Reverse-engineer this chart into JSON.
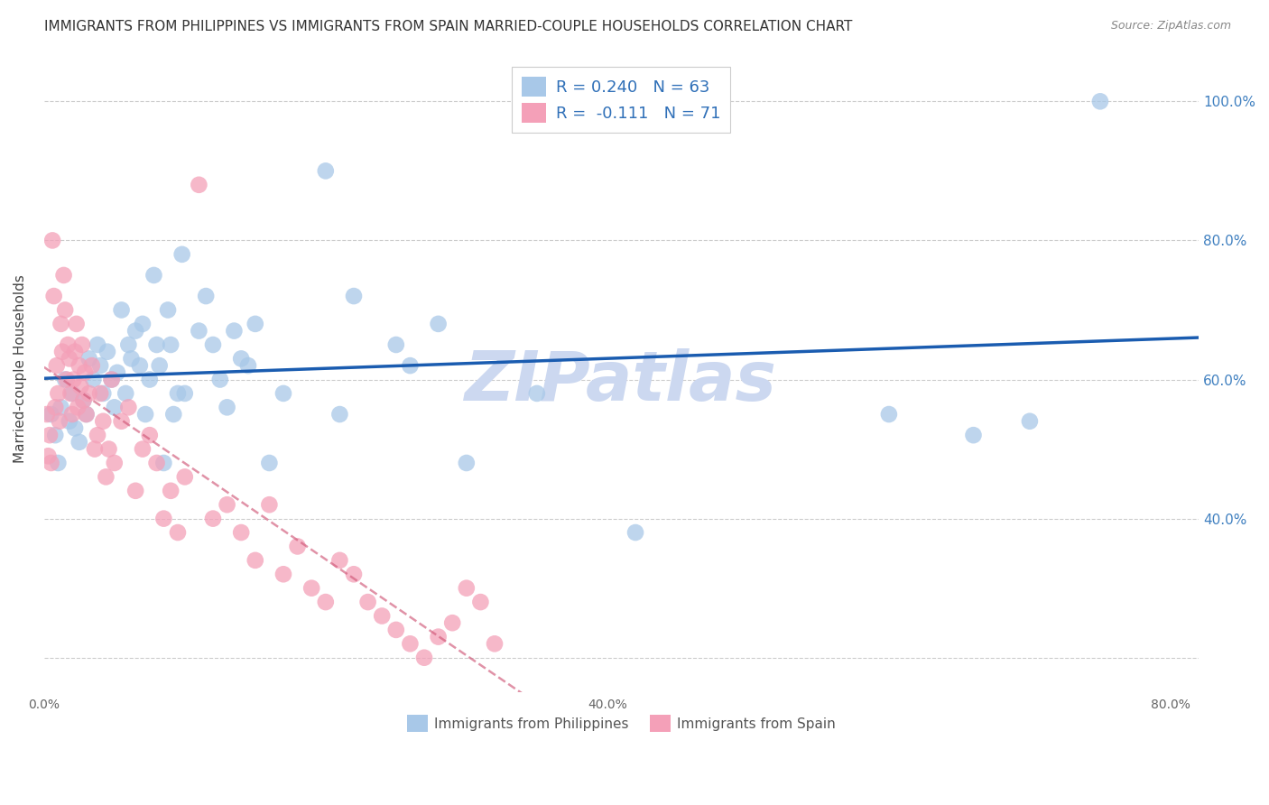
{
  "title": "IMMIGRANTS FROM PHILIPPINES VS IMMIGRANTS FROM SPAIN MARRIED-COUPLE HOUSEHOLDS CORRELATION CHART",
  "source": "Source: ZipAtlas.com",
  "ylabel": "Married-couple Households",
  "xlim": [
    0.0,
    0.82
  ],
  "ylim": [
    0.15,
    1.08
  ],
  "xticks": [
    0.0,
    0.2,
    0.4,
    0.6,
    0.8
  ],
  "xtick_labels": [
    "0.0%",
    "",
    "40.0%",
    "",
    "80.0%"
  ],
  "yticks": [
    0.2,
    0.4,
    0.6,
    0.8,
    1.0
  ],
  "right_ytick_labels": [
    "",
    "40.0%",
    "60.0%",
    "80.0%",
    "100.0%"
  ],
  "philippines_color": "#a8c8e8",
  "spain_color": "#f4a0b8",
  "philippines_line_color": "#1a5cb0",
  "spain_line_color": "#d05878",
  "r_philippines": 0.24,
  "n_philippines": 63,
  "r_spain": -0.111,
  "n_spain": 71,
  "watermark": "ZIPatlas",
  "watermark_color": "#ccd8f0",
  "background_color": "#ffffff",
  "grid_color": "#cccccc",
  "philippines_x": [
    0.005,
    0.008,
    0.01,
    0.012,
    0.015,
    0.018,
    0.02,
    0.022,
    0.025,
    0.028,
    0.03,
    0.032,
    0.035,
    0.038,
    0.04,
    0.042,
    0.045,
    0.048,
    0.05,
    0.052,
    0.055,
    0.058,
    0.06,
    0.062,
    0.065,
    0.068,
    0.07,
    0.072,
    0.075,
    0.078,
    0.08,
    0.082,
    0.085,
    0.088,
    0.09,
    0.092,
    0.095,
    0.098,
    0.1,
    0.11,
    0.115,
    0.12,
    0.125,
    0.13,
    0.135,
    0.14,
    0.145,
    0.15,
    0.16,
    0.17,
    0.2,
    0.21,
    0.22,
    0.25,
    0.26,
    0.28,
    0.3,
    0.35,
    0.42,
    0.6,
    0.66,
    0.7,
    0.75
  ],
  "philippines_y": [
    0.55,
    0.52,
    0.48,
    0.56,
    0.6,
    0.54,
    0.58,
    0.53,
    0.51,
    0.57,
    0.55,
    0.63,
    0.6,
    0.65,
    0.62,
    0.58,
    0.64,
    0.6,
    0.56,
    0.61,
    0.7,
    0.58,
    0.65,
    0.63,
    0.67,
    0.62,
    0.68,
    0.55,
    0.6,
    0.75,
    0.65,
    0.62,
    0.48,
    0.7,
    0.65,
    0.55,
    0.58,
    0.78,
    0.58,
    0.67,
    0.72,
    0.65,
    0.6,
    0.56,
    0.67,
    0.63,
    0.62,
    0.68,
    0.48,
    0.58,
    0.9,
    0.55,
    0.72,
    0.65,
    0.62,
    0.68,
    0.48,
    0.58,
    0.38,
    0.55,
    0.52,
    0.54,
    1.0
  ],
  "spain_x": [
    0.002,
    0.003,
    0.004,
    0.005,
    0.006,
    0.007,
    0.008,
    0.009,
    0.01,
    0.011,
    0.012,
    0.013,
    0.014,
    0.015,
    0.016,
    0.017,
    0.018,
    0.019,
    0.02,
    0.021,
    0.022,
    0.023,
    0.024,
    0.025,
    0.026,
    0.027,
    0.028,
    0.029,
    0.03,
    0.032,
    0.034,
    0.036,
    0.038,
    0.04,
    0.042,
    0.044,
    0.046,
    0.048,
    0.05,
    0.055,
    0.06,
    0.065,
    0.07,
    0.075,
    0.08,
    0.085,
    0.09,
    0.095,
    0.1,
    0.11,
    0.12,
    0.13,
    0.14,
    0.15,
    0.16,
    0.17,
    0.18,
    0.19,
    0.2,
    0.21,
    0.22,
    0.23,
    0.24,
    0.25,
    0.26,
    0.27,
    0.28,
    0.29,
    0.3,
    0.31,
    0.32
  ],
  "spain_y": [
    0.55,
    0.49,
    0.52,
    0.48,
    0.8,
    0.72,
    0.56,
    0.62,
    0.58,
    0.54,
    0.68,
    0.64,
    0.75,
    0.7,
    0.6,
    0.65,
    0.63,
    0.58,
    0.55,
    0.6,
    0.64,
    0.68,
    0.56,
    0.62,
    0.59,
    0.65,
    0.57,
    0.61,
    0.55,
    0.58,
    0.62,
    0.5,
    0.52,
    0.58,
    0.54,
    0.46,
    0.5,
    0.6,
    0.48,
    0.54,
    0.56,
    0.44,
    0.5,
    0.52,
    0.48,
    0.4,
    0.44,
    0.38,
    0.46,
    0.88,
    0.4,
    0.42,
    0.38,
    0.34,
    0.42,
    0.32,
    0.36,
    0.3,
    0.28,
    0.34,
    0.32,
    0.28,
    0.26,
    0.24,
    0.22,
    0.2,
    0.23,
    0.25,
    0.3,
    0.28,
    0.22
  ]
}
